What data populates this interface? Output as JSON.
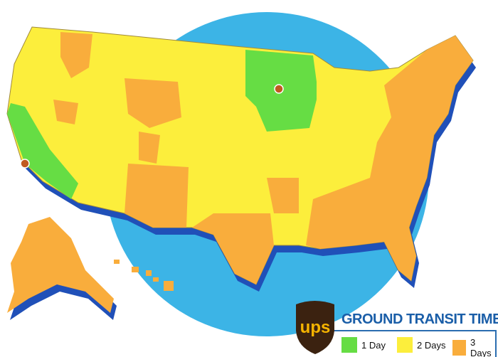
{
  "legend": {
    "title": "GROUND TRANSIT TIMES",
    "logo_text": "ups",
    "items": [
      {
        "label": "1 Day",
        "color": "#66dd44"
      },
      {
        "label": "2 Days",
        "color": "#fcee3c"
      },
      {
        "label": "3 Days",
        "color": "#f9ad3c"
      }
    ]
  },
  "colors": {
    "ocean_circle": "#3cb4e6",
    "shadow": "#2050b8",
    "borders": "#a08a3c"
  },
  "origins": [
    "origin-california",
    "origin-wisconsin"
  ]
}
